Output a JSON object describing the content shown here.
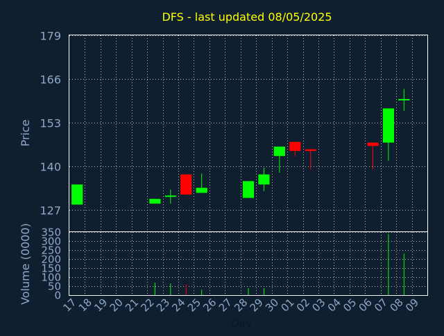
{
  "colors": {
    "background": "#0f1f30",
    "title": "#ffff00",
    "axis_text": "#8fa8c8",
    "frame": "#ffffff",
    "grid": "#ffffff",
    "up": "#00ff00",
    "down": "#ff0000"
  },
  "chart_data": [
    {
      "type": "candlestick",
      "title": "DFS - last updated 08/05/2025",
      "ylabel": "Price",
      "ylim": [
        120.5,
        179
      ],
      "yticks": [
        127,
        140,
        153,
        166,
        179
      ],
      "grid": true,
      "x_labels": [
        "17",
        "18",
        "19",
        "20",
        "21",
        "22",
        "23",
        "24",
        "25",
        "26",
        "27",
        "28",
        "29",
        "30",
        "01",
        "02",
        "03",
        "04",
        "05",
        "06",
        "07",
        "08",
        "09"
      ],
      "candles": [
        {
          "x": "17",
          "open": 128.5,
          "high": 134.5,
          "low": 128.5,
          "close": 134.5
        },
        {
          "x": "22",
          "open": 128.8,
          "high": 130.2,
          "low": 128.8,
          "close": 130.2
        },
        {
          "x": "23",
          "open": 131.0,
          "high": 133.0,
          "low": 128.8,
          "close": 131.2
        },
        {
          "x": "24",
          "open": 137.5,
          "high": 137.5,
          "low": 131.5,
          "close": 131.5
        },
        {
          "x": "25",
          "open": 132.0,
          "high": 137.8,
          "low": 132.0,
          "close": 133.5
        },
        {
          "x": "28",
          "open": 130.5,
          "high": 135.5,
          "low": 130.5,
          "close": 135.5
        },
        {
          "x": "29",
          "open": 134.5,
          "high": 139.5,
          "low": 132.5,
          "close": 137.5
        },
        {
          "x": "30",
          "open": 143.0,
          "high": 145.8,
          "low": 138.0,
          "close": 145.8
        },
        {
          "x": "01",
          "open": 147.2,
          "high": 147.2,
          "low": 143.0,
          "close": 144.5
        },
        {
          "x": "02",
          "open": 145.0,
          "high": 145.0,
          "low": 139.0,
          "close": 144.5
        },
        {
          "x": "06",
          "open": 147.0,
          "high": 147.0,
          "low": 139.0,
          "close": 146.0
        },
        {
          "x": "07",
          "open": 147.0,
          "high": 157.2,
          "low": 141.5,
          "close": 157.2
        },
        {
          "x": "08",
          "open": 160.0,
          "high": 163.0,
          "low": 156.5,
          "close": 160.0
        }
      ]
    },
    {
      "type": "bar",
      "ylabel": "Volume (0000)",
      "xlabel": "Day",
      "ylim": [
        0,
        350
      ],
      "yticks": [
        0,
        50,
        100,
        150,
        200,
        250,
        300,
        350
      ],
      "grid": true,
      "categories": [
        "22",
        "23",
        "24",
        "25",
        "28",
        "29",
        "07",
        "08"
      ],
      "values": [
        70,
        65,
        60,
        30,
        38,
        38,
        340,
        230
      ],
      "colors": [
        "up",
        "up",
        "down",
        "up",
        "up",
        "up",
        "up",
        "up"
      ]
    }
  ]
}
